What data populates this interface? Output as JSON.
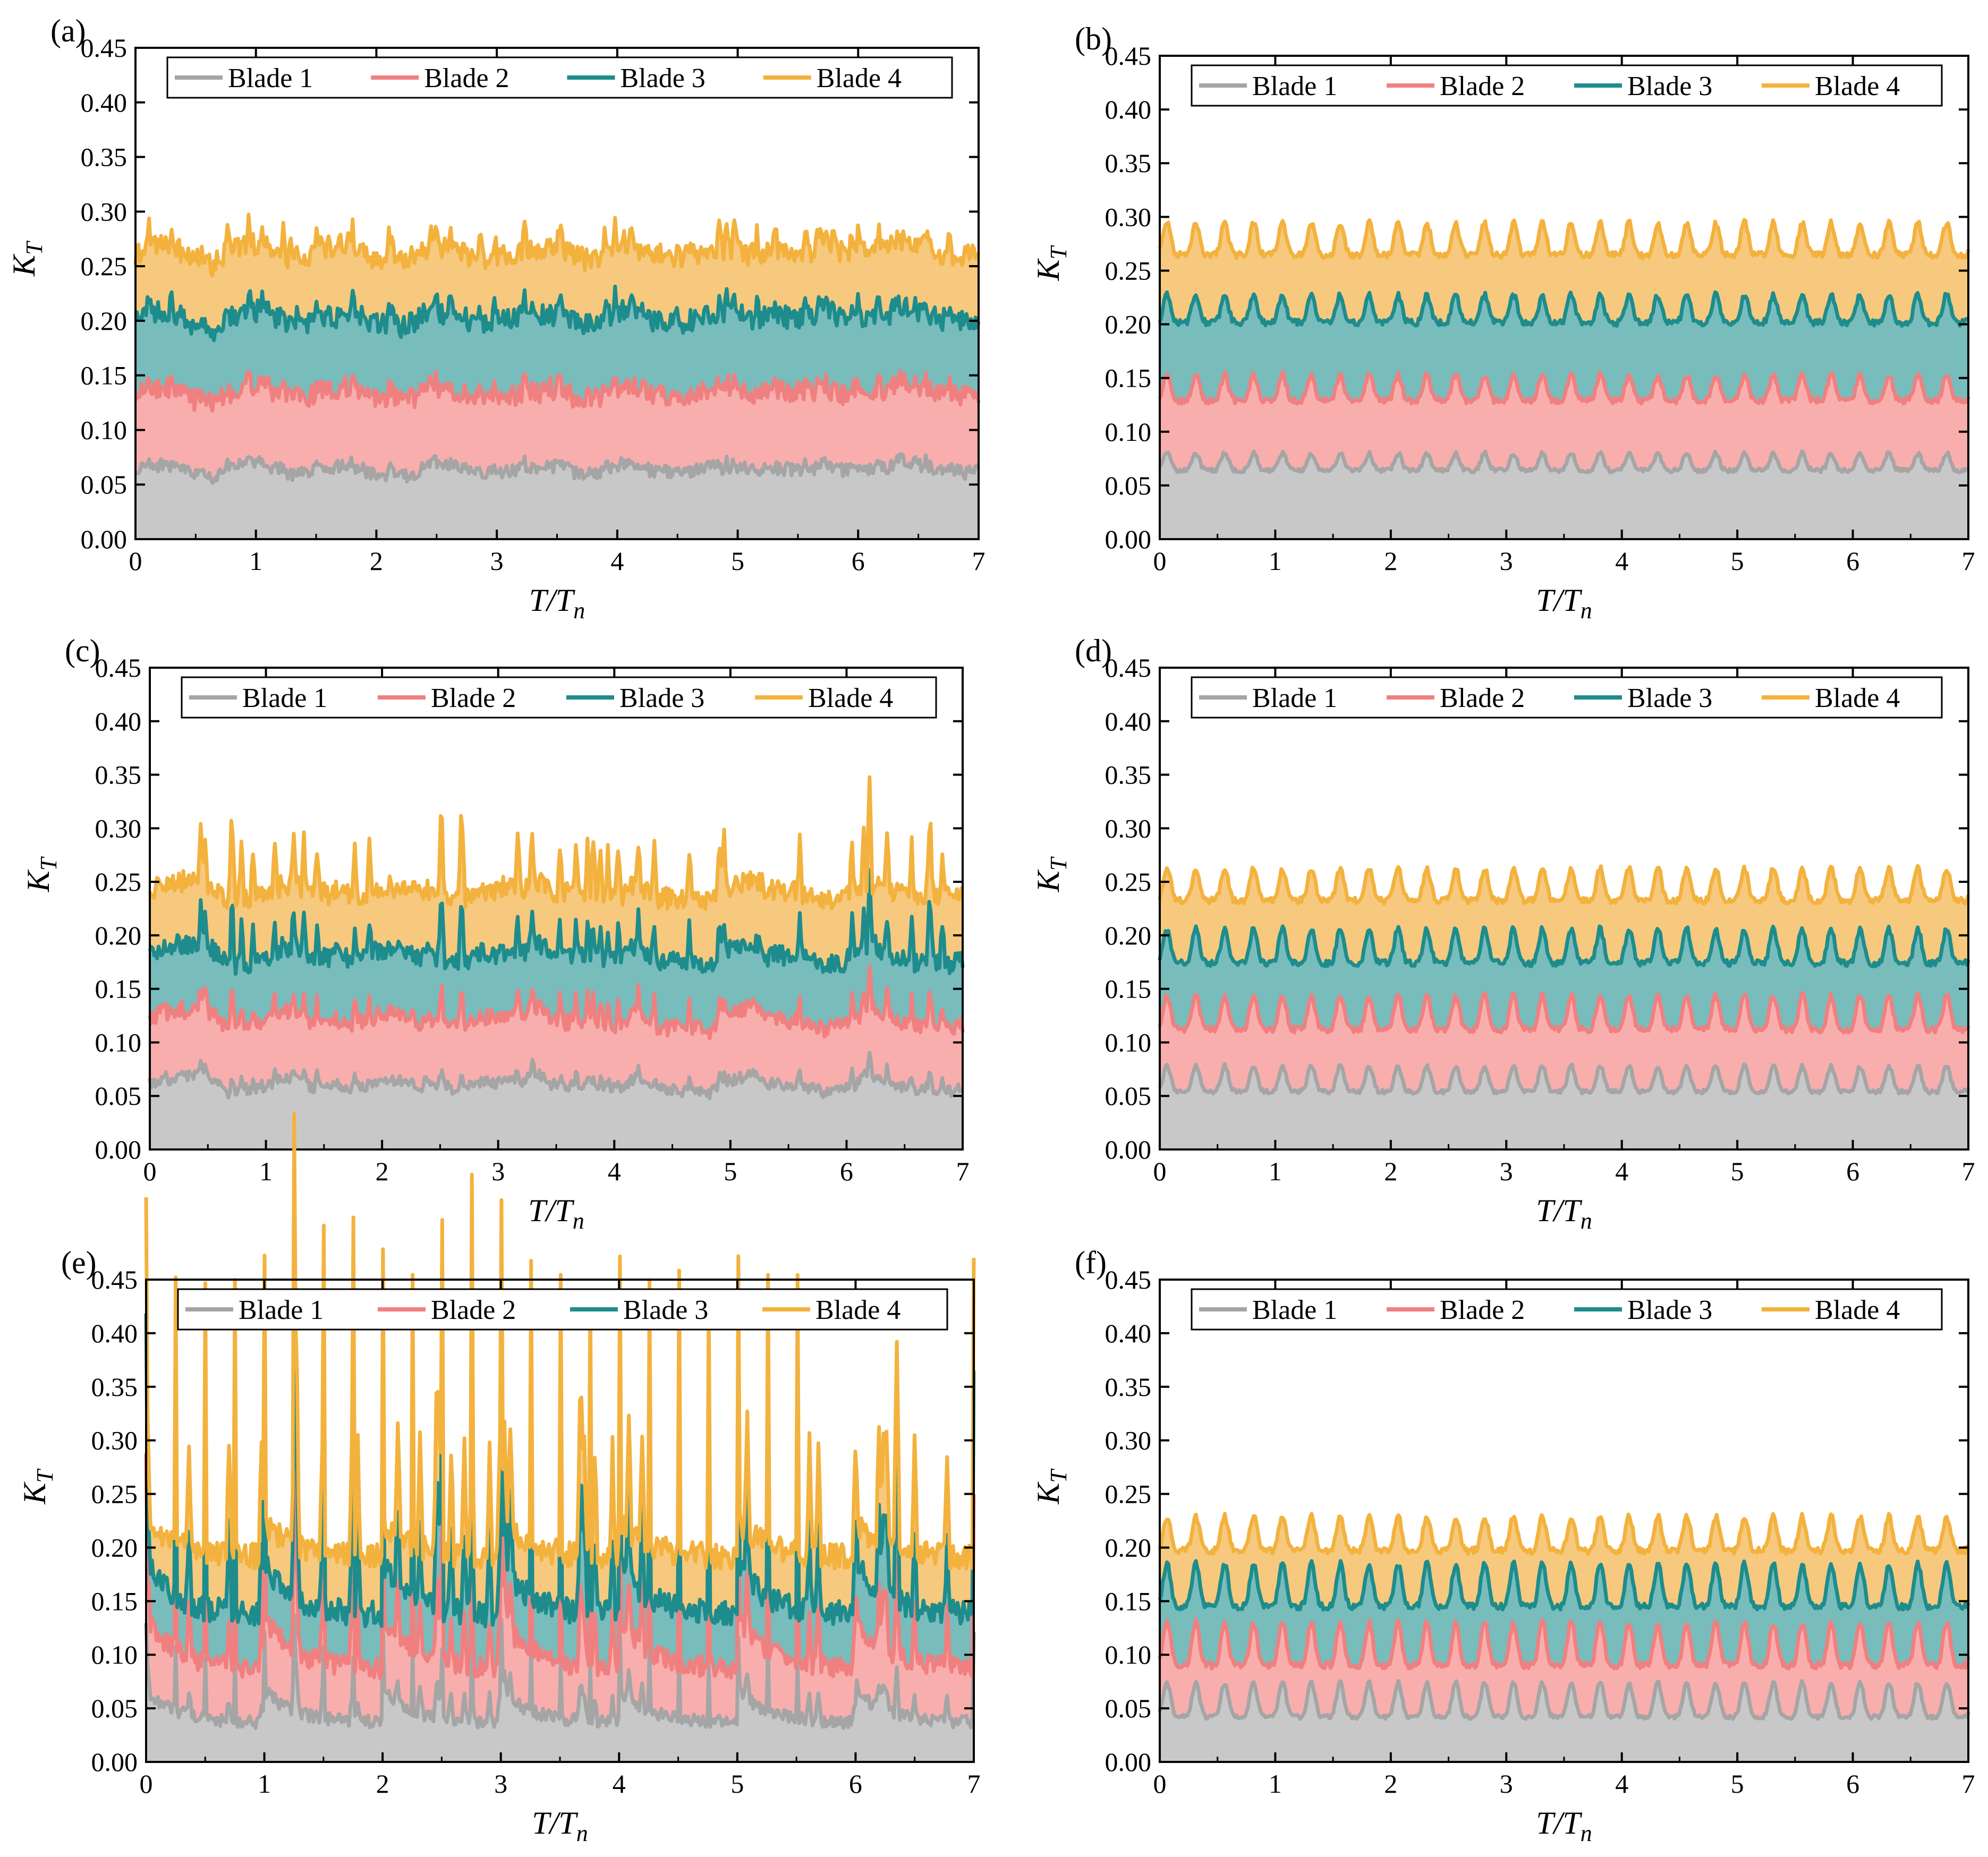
{
  "chart_data": [
    {
      "type": "area",
      "panel_label": "(a)",
      "xlabel": "T/Tn",
      "ylabel": "KT",
      "xlim": [
        0,
        7
      ],
      "ylim": [
        0,
        0.45
      ],
      "x_ticks": [
        "0",
        "1",
        "2",
        "3",
        "4",
        "5",
        "6",
        "7"
      ],
      "y_ticks": [
        "0.00",
        "0.05",
        "0.10",
        "0.15",
        "0.20",
        "0.25",
        "0.30",
        "0.35",
        "0.40",
        "0.45"
      ],
      "pattern": "irregular",
      "cycles": 9,
      "spike": 0.004,
      "series": [
        {
          "name": "Blade 1",
          "color": "#a5a5a5",
          "fill": "#c8c8c8",
          "base": 0.064,
          "amp": 0.01,
          "noise": 0.006
        },
        {
          "name": "Blade 2",
          "color": "#f08080",
          "fill": "#f9aeae",
          "base": 0.134,
          "amp": 0.012,
          "noise": 0.009
        },
        {
          "name": "Blade 3",
          "color": "#1e8c8c",
          "fill": "#79bcbc",
          "base": 0.203,
          "amp": 0.013,
          "noise": 0.01
        },
        {
          "name": "Blade 4",
          "color": "#f3b23e",
          "fill": "#f6c97e",
          "base": 0.263,
          "amp": 0.014,
          "noise": 0.01
        }
      ]
    },
    {
      "type": "area",
      "panel_label": "(b)",
      "xlabel": "T/Tn",
      "ylabel": "KT",
      "xlim": [
        0,
        7
      ],
      "ylim": [
        0,
        0.45
      ],
      "x_ticks": [
        "0",
        "1",
        "2",
        "3",
        "4",
        "5",
        "6",
        "7"
      ],
      "y_ticks": [
        "0.00",
        "0.05",
        "0.10",
        "0.15",
        "0.20",
        "0.25",
        "0.30",
        "0.35",
        "0.40",
        "0.45"
      ],
      "pattern": "periodic",
      "cycles": 28,
      "spike": 0.0,
      "series": [
        {
          "name": "Blade 1",
          "color": "#a5a5a5",
          "fill": "#c8c8c8",
          "base": 0.068,
          "amp": 0.008,
          "noise": 0.002
        },
        {
          "name": "Blade 2",
          "color": "#f08080",
          "fill": "#f9aeae",
          "base": 0.135,
          "amp": 0.012,
          "noise": 0.003
        },
        {
          "name": "Blade 3",
          "color": "#1e8c8c",
          "fill": "#79bcbc",
          "base": 0.208,
          "amp": 0.013,
          "noise": 0.003
        },
        {
          "name": "Blade 4",
          "color": "#f3b23e",
          "fill": "#f6c97e",
          "base": 0.272,
          "amp": 0.015,
          "noise": 0.003
        }
      ]
    },
    {
      "type": "area",
      "panel_label": "(c)",
      "xlabel": "T/Tn",
      "ylabel": "KT",
      "xlim": [
        0,
        7
      ],
      "ylim": [
        0,
        0.45
      ],
      "x_ticks": [
        "0",
        "1",
        "2",
        "3",
        "4",
        "5",
        "6",
        "7"
      ],
      "y_ticks": [
        "0.00",
        "0.05",
        "0.10",
        "0.15",
        "0.20",
        "0.25",
        "0.30",
        "0.35",
        "0.40",
        "0.45"
      ],
      "pattern": "irregular",
      "cycles": 7,
      "spike": 0.01,
      "series": [
        {
          "name": "Blade 1",
          "color": "#a5a5a5",
          "fill": "#c8c8c8",
          "base": 0.06,
          "amp": 0.014,
          "noise": 0.005
        },
        {
          "name": "Blade 2",
          "color": "#f08080",
          "fill": "#f9aeae",
          "base": 0.12,
          "amp": 0.018,
          "noise": 0.007
        },
        {
          "name": "Blade 3",
          "color": "#1e8c8c",
          "fill": "#79bcbc",
          "base": 0.18,
          "amp": 0.018,
          "noise": 0.009
        },
        {
          "name": "Blade 4",
          "color": "#f3b23e",
          "fill": "#f6c97e",
          "base": 0.24,
          "amp": 0.016,
          "noise": 0.01
        }
      ]
    },
    {
      "type": "area",
      "panel_label": "(d)",
      "xlabel": "T/Tn",
      "ylabel": "KT",
      "xlim": [
        0,
        7
      ],
      "ylim": [
        0,
        0.45
      ],
      "x_ticks": [
        "0",
        "1",
        "2",
        "3",
        "4",
        "5",
        "6",
        "7"
      ],
      "y_ticks": [
        "0.00",
        "0.05",
        "0.10",
        "0.15",
        "0.20",
        "0.25",
        "0.30",
        "0.35",
        "0.40",
        "0.45"
      ],
      "pattern": "periodic",
      "cycles": 28,
      "spike": 0.0,
      "series": [
        {
          "name": "Blade 1",
          "color": "#a5a5a5",
          "fill": "#c8c8c8",
          "base": 0.06,
          "amp": 0.012,
          "noise": 0.002
        },
        {
          "name": "Blade 2",
          "color": "#f08080",
          "fill": "#f9aeae",
          "base": 0.12,
          "amp": 0.016,
          "noise": 0.003
        },
        {
          "name": "Blade 3",
          "color": "#1e8c8c",
          "fill": "#79bcbc",
          "base": 0.182,
          "amp": 0.016,
          "noise": 0.003
        },
        {
          "name": "Blade 4",
          "color": "#f3b23e",
          "fill": "#f6c97e",
          "base": 0.24,
          "amp": 0.015,
          "noise": 0.003
        }
      ]
    },
    {
      "type": "area",
      "panel_label": "(e)",
      "xlabel": "T/Tn",
      "ylabel": "KT",
      "xlim": [
        0,
        7
      ],
      "ylim": [
        0,
        0.45
      ],
      "x_ticks": [
        "0",
        "1",
        "2",
        "3",
        "4",
        "5",
        "6",
        "7"
      ],
      "y_ticks": [
        "0.00",
        "0.05",
        "0.10",
        "0.15",
        "0.20",
        "0.25",
        "0.30",
        "0.35",
        "0.40",
        "0.45"
      ],
      "pattern": "spiky",
      "cycles": 7,
      "spike": 0.022,
      "series": [
        {
          "name": "Blade 1",
          "color": "#a5a5a5",
          "fill": "#c8c8c8",
          "base": 0.045,
          "amp": 0.014,
          "noise": 0.006
        },
        {
          "name": "Blade 2",
          "color": "#f08080",
          "fill": "#f9aeae",
          "base": 0.1,
          "amp": 0.022,
          "noise": 0.01
        },
        {
          "name": "Blade 3",
          "color": "#1e8c8c",
          "fill": "#79bcbc",
          "base": 0.15,
          "amp": 0.022,
          "noise": 0.012
        },
        {
          "name": "Blade 4",
          "color": "#f3b23e",
          "fill": "#f6c97e",
          "base": 0.2,
          "amp": 0.015,
          "noise": 0.012
        }
      ]
    },
    {
      "type": "area",
      "panel_label": "(f)",
      "xlabel": "T/Tn",
      "ylabel": "KT",
      "xlim": [
        0,
        7
      ],
      "ylim": [
        0,
        0.45
      ],
      "x_ticks": [
        "0",
        "1",
        "2",
        "3",
        "4",
        "5",
        "6",
        "7"
      ],
      "y_ticks": [
        "0.00",
        "0.05",
        "0.10",
        "0.15",
        "0.20",
        "0.25",
        "0.30",
        "0.35",
        "0.40",
        "0.45"
      ],
      "pattern": "periodic",
      "cycles": 28,
      "spike": 0.0,
      "series": [
        {
          "name": "Blade 1",
          "color": "#a5a5a5",
          "fill": "#c8c8c8",
          "base": 0.05,
          "amp": 0.016,
          "noise": 0.002
        },
        {
          "name": "Blade 2",
          "color": "#f08080",
          "fill": "#f9aeae",
          "base": 0.1,
          "amp": 0.02,
          "noise": 0.003
        },
        {
          "name": "Blade 3",
          "color": "#1e8c8c",
          "fill": "#79bcbc",
          "base": 0.155,
          "amp": 0.02,
          "noise": 0.003
        },
        {
          "name": "Blade 4",
          "color": "#f3b23e",
          "fill": "#f6c97e",
          "base": 0.205,
          "amp": 0.016,
          "noise": 0.003
        }
      ]
    }
  ]
}
